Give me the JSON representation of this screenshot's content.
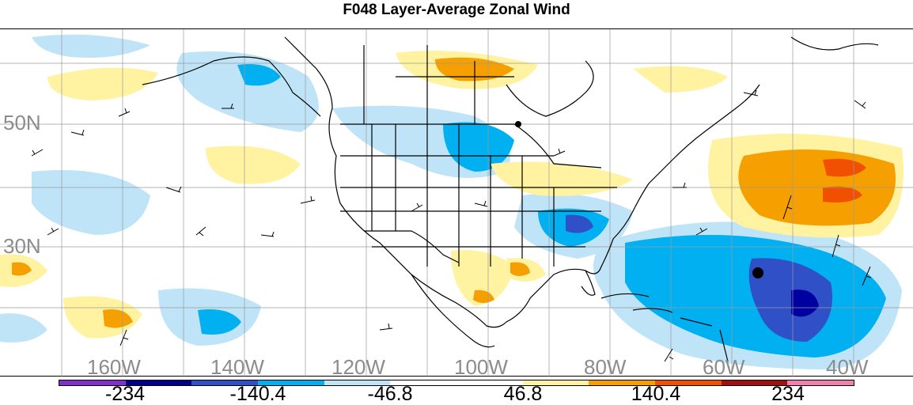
{
  "title": "F048 Layer-Average Zonal Wind",
  "map": {
    "lat_labels": [
      "50N",
      "30N"
    ],
    "lon_labels": [
      "160W",
      "140W",
      "120W",
      "100W",
      "80W",
      "60W",
      "40W"
    ],
    "colors": {
      "strong_neg_1": "#0000a0",
      "strong_neg_2": "#3050c8",
      "neg_mid": "#00b0f0",
      "neg_light": "#bfe4f8",
      "pos_light": "#fff2a0",
      "pos_mid": "#f5a000",
      "pos_strong": "#f05000"
    }
  },
  "colorbar": {
    "colors": [
      "#8030c8",
      "#000090",
      "#3050c8",
      "#00b0f0",
      "#bfe4f8",
      "#ffffff",
      "#ffffff",
      "#fff2a0",
      "#f5a000",
      "#f05000",
      "#a01010",
      "#f080b0"
    ],
    "labels": [
      "-234",
      "-140.4",
      "-46.8",
      "46.8",
      "140.4",
      "234"
    ]
  }
}
